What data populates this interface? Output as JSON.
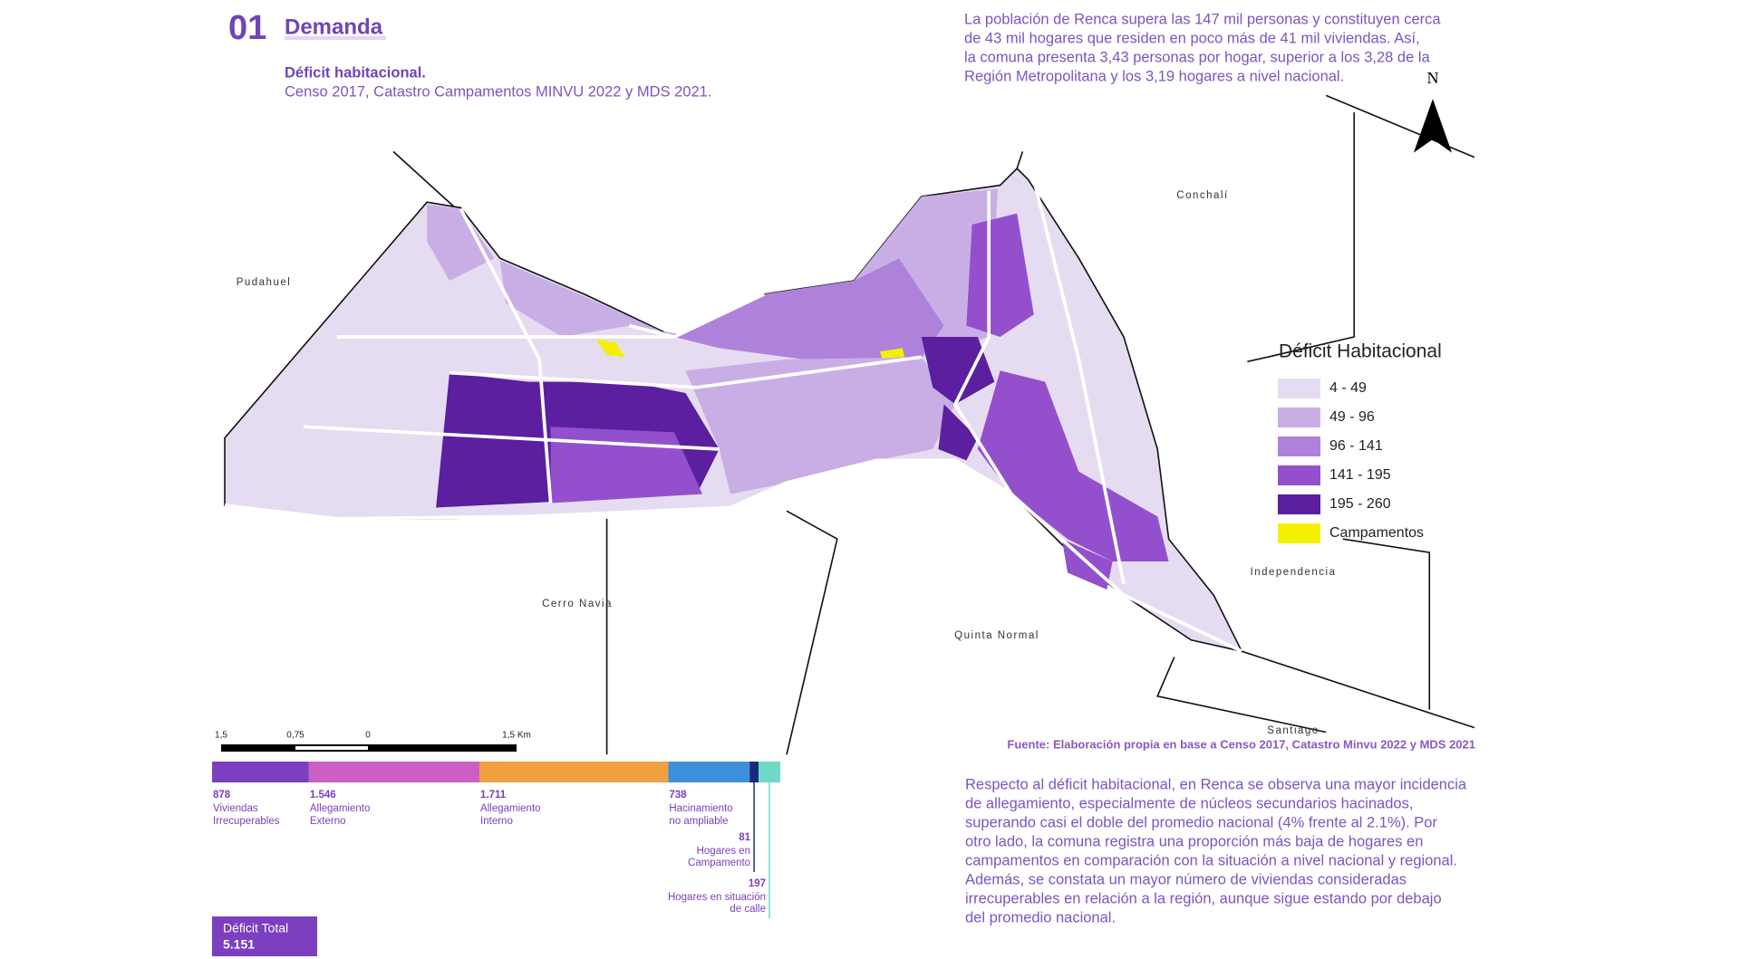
{
  "header": {
    "number": "01",
    "section": "Demanda",
    "title": "Déficit habitacional.",
    "source": "Censo 2017, Catastro Campamentos MINVU 2022 y MDS 2021."
  },
  "intro": [
    "La población de Renca supera las 147 mil personas y constituyen cerca",
    "de 43 mil hogares que residen en poco más de 41 mil viviendas. Así,",
    "la comuna presenta 3,43 personas por hogar, superior a los 3,28 de la",
    "Región Metropolitana y los 3,19 hogares a nivel nacional."
  ],
  "map": {
    "north": "N",
    "places": [
      "Pudahuel",
      "Conchalí",
      "Cerro Navia",
      "Quinta Normal",
      "Independencia",
      "Santiago"
    ],
    "legend": {
      "title": "Déficit Habitacional",
      "items": [
        {
          "label": "4 - 49",
          "color": "#e6dcf1"
        },
        {
          "label": "49 - 96",
          "color": "#c9aee6"
        },
        {
          "label": "96 - 141",
          "color": "#ae82da"
        },
        {
          "label": "141 - 195",
          "color": "#9450cc"
        },
        {
          "label": "195 - 260",
          "color": "#5b1f9f"
        },
        {
          "label": "Campamentos",
          "color": "#f5f000"
        }
      ]
    },
    "scale": [
      "1,5",
      "0,75",
      "0",
      "1,5 Km"
    ],
    "source": "Fuente: Elaboración propia en base a Censo 2017, Catastro Minvu 2022 y MDS 2021"
  },
  "breakdown": {
    "segments": [
      {
        "value": 878,
        "label": [
          "Viviendas",
          "Irrecuperables"
        ],
        "color": "#7b3fbf"
      },
      {
        "value": 1546,
        "value_label": "1.546",
        "label": [
          "Allegamiento",
          "Externo"
        ],
        "color": "#cc5fc4"
      },
      {
        "value": 1711,
        "value_label": "1.711",
        "label": [
          "Allegamiento",
          "Interno"
        ],
        "color": "#f0a03c"
      },
      {
        "value": 738,
        "label": [
          "Hacinamiento",
          "no ampliable"
        ],
        "color": "#3f8fdc"
      },
      {
        "value": 81,
        "label": [
          "Hogares en",
          "Campamento"
        ],
        "color": "#1a2a7a"
      },
      {
        "value": 197,
        "label": [
          "Hogares en situación",
          "de calle"
        ],
        "color": "#6fd8c8"
      }
    ],
    "total": {
      "label": "Déficit Total",
      "value": 5151,
      "value_label": "5.151"
    }
  },
  "analysis": [
    "Respecto al déficit habitacional, en Renca se observa una mayor incidencia",
    "de allegamiento, especialmente de núcleos secundarios hacinados,",
    "superando casi el doble del promedio nacional (4% frente al 2.1%). Por",
    "otro lado, la comuna registra una proporción más baja de hogares en",
    "campamentos en comparación con la situación a nivel nacional y regional.",
    "Además, se constata un mayor número de viviendas consideradas",
    "irrecuperables en relación a la región, aunque sigue estando por debajo",
    "del promedio nacional."
  ]
}
